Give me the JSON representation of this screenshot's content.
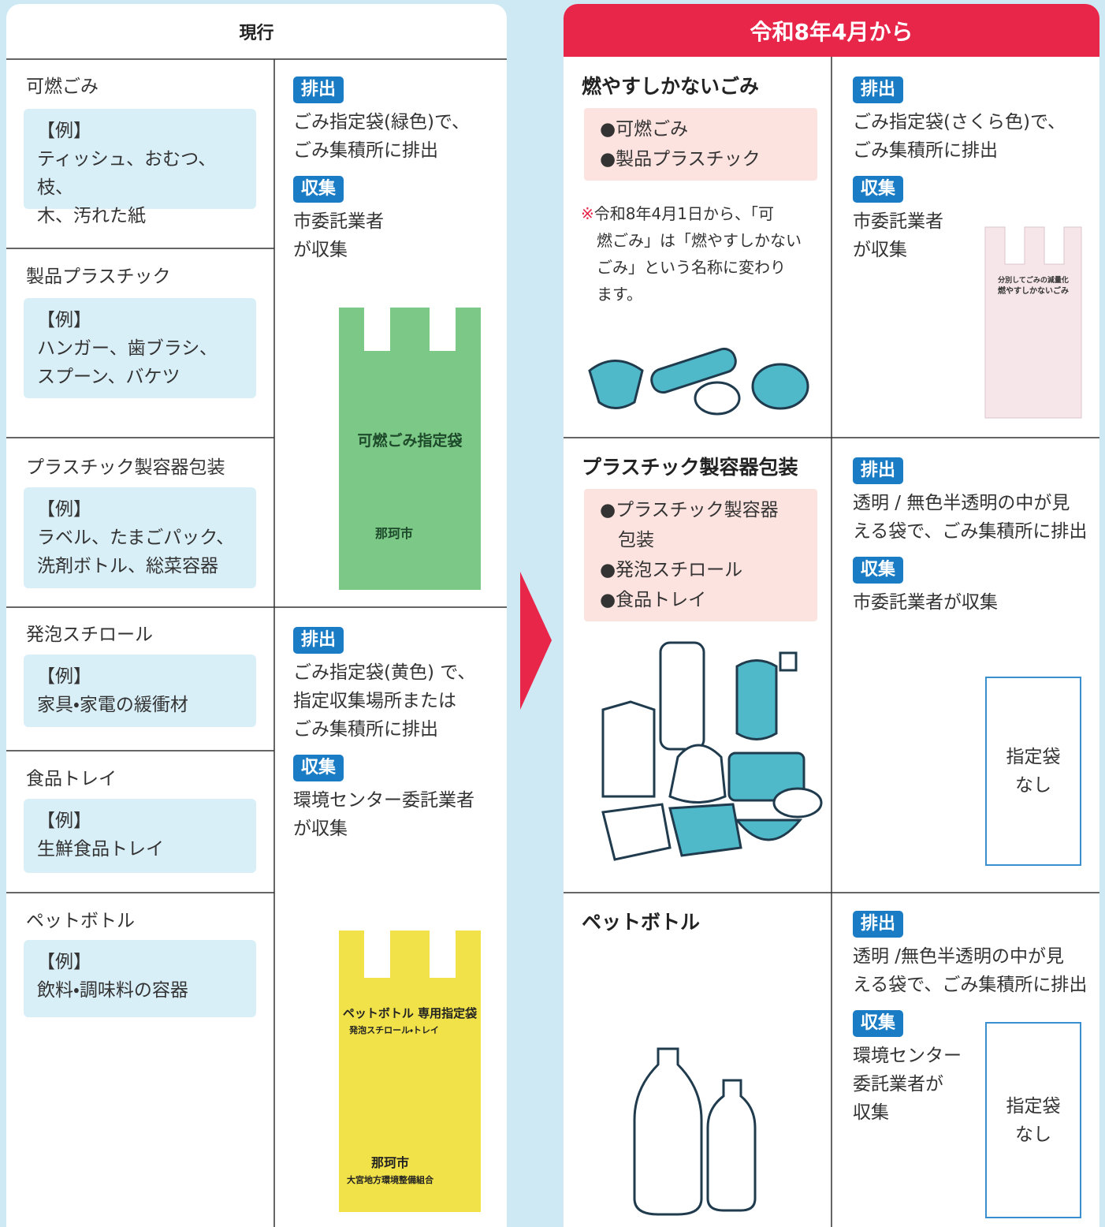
{
  "current": {
    "header": "現行",
    "items": [
      {
        "name": "可燃ごみ",
        "example_label": "【例】",
        "examples": "ティッシュ、おむつ、枝、\n木、汚れた紙"
      },
      {
        "name": "製品プラスチック",
        "example_label": "【例】",
        "examples": "ハンガー、歯ブラシ、\nスプーン、バケツ"
      },
      {
        "name": "プラスチック製容器包装",
        "example_label": "【例】",
        "examples": "ラベル、たまごパック、\n洗剤ボトル、総菜容器"
      },
      {
        "name": "発泡スチロール",
        "example_label": "【例】",
        "examples": "家具・家電の緩衝材"
      },
      {
        "name": "食品トレイ",
        "example_label": "【例】",
        "examples": "生鮮食品トレイ"
      },
      {
        "name": "ペットボトル",
        "example_label": "【例】",
        "examples": "飲料・調味料の容器"
      }
    ],
    "methods": [
      {
        "discharge_label": "排出",
        "discharge": "ごみ指定袋(緑色)で、\nごみ集積所に排出",
        "collection_label": "収集",
        "collection": "市委託業者\nが収集",
        "bag_text": [
          "可燃ごみ指定袋",
          "那珂市"
        ]
      },
      {
        "discharge_label": "排出",
        "discharge": "ごみ指定袋(黄色) で、\n指定収集場所または\nごみ集積所に排出",
        "collection_label": "収集",
        "collection": "環境センター委託業者\nが収集",
        "bag_text": [
          "ペットボトル 専用指定袋",
          "発泡スチロール・トレイ",
          "那珂市",
          "大宮地方環境整備組合"
        ]
      }
    ]
  },
  "new": {
    "header": "令和8年4月から",
    "rows": [
      {
        "name": "燃やすしかないごみ",
        "bullets": [
          "●可燃ごみ",
          "●製品プラスチック"
        ],
        "note_mark": "※",
        "note": "令和8年4月1日から、「可\n燃ごみ」は「燃やすしかない\nごみ」という名称に変わり\nます。",
        "discharge_label": "排出",
        "discharge": "ごみ指定袋(さくら色)で、\nごみ集積所に排出",
        "collection_label": "収集",
        "collection": "市委託業者\nが収集",
        "bag_text": [
          "分別してごみの減量化",
          "燃やすしかないごみ"
        ]
      },
      {
        "name": "プラスチック製容器包装",
        "bullets": [
          "●プラスチック製容器\n包装",
          "●発泡スチロール",
          "●食品トレイ"
        ],
        "discharge_label": "排出",
        "discharge": "透明 / 無色半透明の中が見\nえる袋で、ごみ集積所に排出",
        "collection_label": "収集",
        "collection": "市委託業者が収集",
        "no_bag": "指定袋\nなし"
      },
      {
        "name": "ペットボトル",
        "discharge_label": "排出",
        "discharge": "透明 /無色半透明の中が見\nえる袋で、ごみ集積所に排出",
        "collection_label": "収集",
        "collection": "環境センター\n委託業者が\n収集",
        "no_bag": "指定袋\nなし"
      }
    ]
  }
}
